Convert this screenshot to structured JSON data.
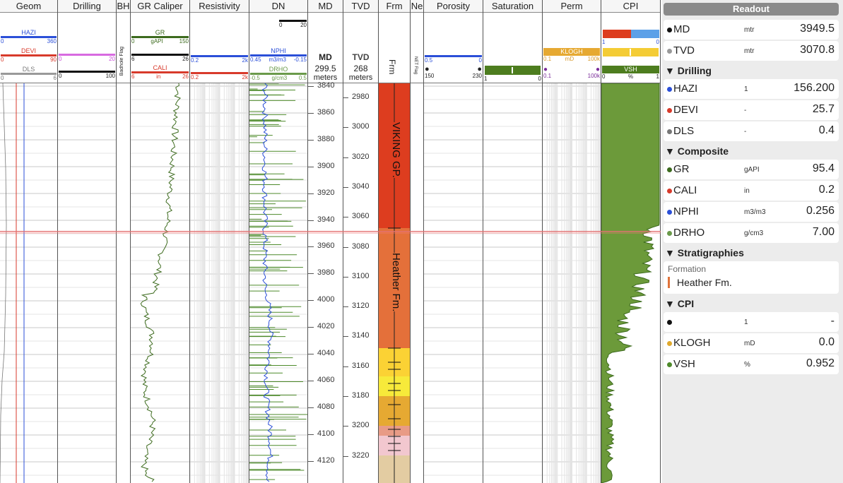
{
  "tracks": {
    "geom": "Geom",
    "drilling": "Drilling",
    "bh": "BH",
    "gr_caliper": "GR Caliper",
    "resistivity": "Resistivity",
    "dn": "DN",
    "md": "MD",
    "tvd": "TVD",
    "frm": "Frm",
    "net": "Ne",
    "porosity": "Porosity",
    "saturation": "Saturation",
    "perm": "Perm",
    "cpi": "CPI"
  },
  "headers": {
    "hazi": {
      "name": "HAZI",
      "min": "0",
      "max": "360"
    },
    "devi": {
      "name": "DEVI",
      "min": "0",
      "max": "90"
    },
    "dls": {
      "name": "DLS",
      "min": "0",
      "max": "6"
    },
    "drill_pink": {
      "min": "0",
      "max": "20"
    },
    "drill_black": {
      "min": "0",
      "max": "100"
    },
    "badhole": "Badhole Flag",
    "gr": {
      "name": "GR",
      "min": "0",
      "unit": "gAPI",
      "max": "150"
    },
    "gr_black": {
      "min": "6",
      "max": "26"
    },
    "cali": {
      "name": "CALI",
      "min": "6",
      "unit": "in",
      "max": "26"
    },
    "res1": {
      "min": "0.2",
      "max": "2k"
    },
    "res2": {
      "min": "0.2",
      "max": "2k"
    },
    "dn_scale": {
      "min": "0",
      "max": "20"
    },
    "nphi": {
      "name": "NPHI",
      "min": "0.45",
      "unit": "m3/m3",
      "max": "-0.15"
    },
    "drho": {
      "name": "DRHO",
      "min": "-0.5",
      "unit": "g/cm3",
      "max": "0.5"
    },
    "md": {
      "name": "MD",
      "value": "299.5",
      "unit": "meters"
    },
    "tvd": {
      "name": "TVD",
      "value": "268",
      "unit": "meters"
    },
    "frm_name": "Frm",
    "netflag": "NET Flag",
    "por1": {
      "min": "0.5",
      "max": "0"
    },
    "por2": {
      "min": "150",
      "max": "230"
    },
    "sat": {
      "min": "1",
      "max": "0"
    },
    "klogh": {
      "name": "KLOGH",
      "min": "0.1",
      "unit": "mD",
      "max": "100k"
    },
    "perm2": {
      "min": "0.1",
      "max": "100k"
    },
    "cpi1": {
      "min": "1",
      "max": "0"
    },
    "vsh": {
      "name": "VSH",
      "min": "0",
      "unit": "%",
      "max": "1"
    }
  },
  "md_labels": [
    "3840",
    "3860",
    "3880",
    "3900",
    "3920",
    "3940",
    "3960",
    "3980",
    "4000",
    "4020",
    "4040",
    "4060",
    "4080",
    "4100",
    "4120"
  ],
  "tvd_labels": [
    "2980",
    "3000",
    "3020",
    "3040",
    "3060",
    "3080",
    "3100",
    "3120",
    "3140",
    "3160",
    "3180",
    "3200",
    "3220"
  ],
  "formations": [
    {
      "name": "VIKING GP.",
      "color": "#dd3d1f"
    },
    {
      "name": "Heather Fm.",
      "color": "#e4703a"
    }
  ],
  "readout": {
    "title": "Readout",
    "top_rows": [
      {
        "name": "MD",
        "unit": "mtr",
        "value": "3949.5",
        "color": "#111111"
      },
      {
        "name": "TVD",
        "unit": "mtr",
        "value": "3070.8",
        "color": "#999999"
      }
    ],
    "sections": [
      {
        "title": "Drilling",
        "rows": [
          {
            "name": "HAZI",
            "unit": "1",
            "value": "156.200",
            "color": "#2b4fd8"
          },
          {
            "name": "DEVI",
            "unit": "-",
            "value": "25.7",
            "color": "#d83a2b"
          },
          {
            "name": "DLS",
            "unit": "-",
            "value": "0.4",
            "color": "#777777"
          }
        ]
      },
      {
        "title": "Composite",
        "rows": [
          {
            "name": "GR",
            "unit": "gAPI",
            "value": "95.4",
            "color": "#3d6b1e"
          },
          {
            "name": "CALI",
            "unit": "in",
            "value": "0.2",
            "color": "#d83a2b"
          },
          {
            "name": "NPHI",
            "unit": "m3/m3",
            "value": "0.256",
            "color": "#2b4fd8"
          },
          {
            "name": "DRHO",
            "unit": "g/cm3",
            "value": "7.00",
            "color": "#6a9a4a"
          }
        ]
      }
    ],
    "strat_title": "Stratigraphies",
    "strat_label": "Formation",
    "strat_value": "Heather Fm.",
    "cpi_title": "CPI",
    "cpi_rows": [
      {
        "name": "",
        "unit": "1",
        "value": "-",
        "color": "#111111"
      },
      {
        "name": "KLOGH",
        "unit": "mD",
        "value": "0.0",
        "color": "#e0a92c"
      },
      {
        "name": "VSH",
        "unit": "%",
        "value": "0.952",
        "color": "#4d8a2a"
      }
    ]
  }
}
